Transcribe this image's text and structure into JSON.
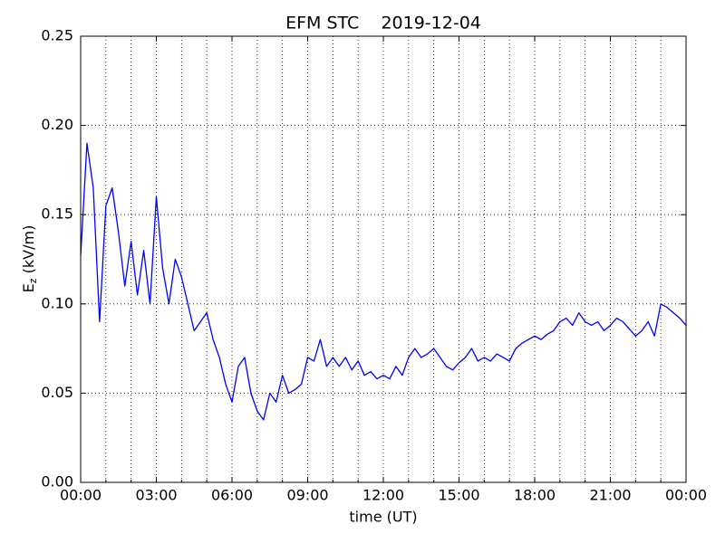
{
  "chart_data": {
    "type": "line",
    "title": "EFM STC    2019-12-04",
    "xlabel": "time (UT)",
    "ylabel": {
      "base": "E",
      "sub": "z",
      "rest": " (kV/m)"
    },
    "x": [
      0,
      0.25,
      0.5,
      0.75,
      1,
      1.25,
      1.5,
      1.75,
      2,
      2.25,
      2.5,
      2.75,
      3,
      3.25,
      3.5,
      3.75,
      4,
      4.25,
      4.5,
      4.75,
      5,
      5.25,
      5.5,
      5.75,
      6,
      6.25,
      6.5,
      6.75,
      7,
      7.25,
      7.5,
      7.75,
      8,
      8.25,
      8.5,
      8.75,
      9,
      9.25,
      9.5,
      9.75,
      10,
      10.25,
      10.5,
      10.75,
      11,
      11.25,
      11.5,
      11.75,
      12,
      12.25,
      12.5,
      12.75,
      13,
      13.25,
      13.5,
      13.75,
      14,
      14.25,
      14.5,
      14.75,
      15,
      15.25,
      15.5,
      15.75,
      16,
      16.25,
      16.5,
      16.75,
      17,
      17.25,
      17.5,
      17.75,
      18,
      18.25,
      18.5,
      18.75,
      19,
      19.25,
      19.5,
      19.75,
      20,
      20.25,
      20.5,
      20.75,
      21,
      21.25,
      21.5,
      21.75,
      22,
      22.25,
      22.5,
      22.75,
      23,
      23.25,
      23.5,
      23.75,
      24
    ],
    "series": [
      {
        "color": "#0000ff",
        "values": [
          0.127,
          0.19,
          0.165,
          0.09,
          0.155,
          0.165,
          0.14,
          0.11,
          0.135,
          0.105,
          0.13,
          0.1,
          0.16,
          0.12,
          0.1,
          0.125,
          0.115,
          0.1,
          0.085,
          0.09,
          0.095,
          0.08,
          0.07,
          0.055,
          0.045,
          0.065,
          0.07,
          0.05,
          0.04,
          0.035,
          0.05,
          0.045,
          0.06,
          0.05,
          0.052,
          0.055,
          0.07,
          0.068,
          0.08,
          0.065,
          0.07,
          0.065,
          0.07,
          0.063,
          0.068,
          0.06,
          0.062,
          0.058,
          0.06,
          0.058,
          0.065,
          0.06,
          0.07,
          0.075,
          0.07,
          0.072,
          0.075,
          0.07,
          0.065,
          0.063,
          0.067,
          0.07,
          0.075,
          0.068,
          0.07,
          0.068,
          0.072,
          0.07,
          0.068,
          0.075,
          0.078,
          0.08,
          0.082,
          0.08,
          0.083,
          0.085,
          0.09,
          0.092,
          0.088,
          0.095,
          0.09,
          0.088,
          0.09,
          0.085,
          0.088,
          0.092,
          0.09,
          0.086,
          0.082,
          0.085,
          0.09,
          0.082,
          0.1,
          0.098,
          0.095,
          0.092,
          0.088
        ]
      }
    ],
    "xlim": [
      0,
      24
    ],
    "xticks": [
      {
        "value": 0,
        "label": "00:00"
      },
      {
        "value": 3,
        "label": "03:00"
      },
      {
        "value": 6,
        "label": "06:00"
      },
      {
        "value": 9,
        "label": "09:00"
      },
      {
        "value": 12,
        "label": "12:00"
      },
      {
        "value": 15,
        "label": "15:00"
      },
      {
        "value": 18,
        "label": "18:00"
      },
      {
        "value": 21,
        "label": "21:00"
      },
      {
        "value": 24,
        "label": "00:00"
      }
    ],
    "xminorticks": [
      1,
      2,
      4,
      5,
      7,
      8,
      10,
      11,
      13,
      14,
      16,
      17,
      19,
      20,
      22,
      23
    ],
    "ylim": [
      0,
      0.25
    ],
    "yticks": [
      {
        "value": 0,
        "label": "0.00"
      },
      {
        "value": 0.05,
        "label": "0.05"
      },
      {
        "value": 0.1,
        "label": "0.10"
      },
      0.15,
      {
        "value": 0.2,
        "label": "0.20"
      },
      0.25
    ],
    "grid": true
  }
}
